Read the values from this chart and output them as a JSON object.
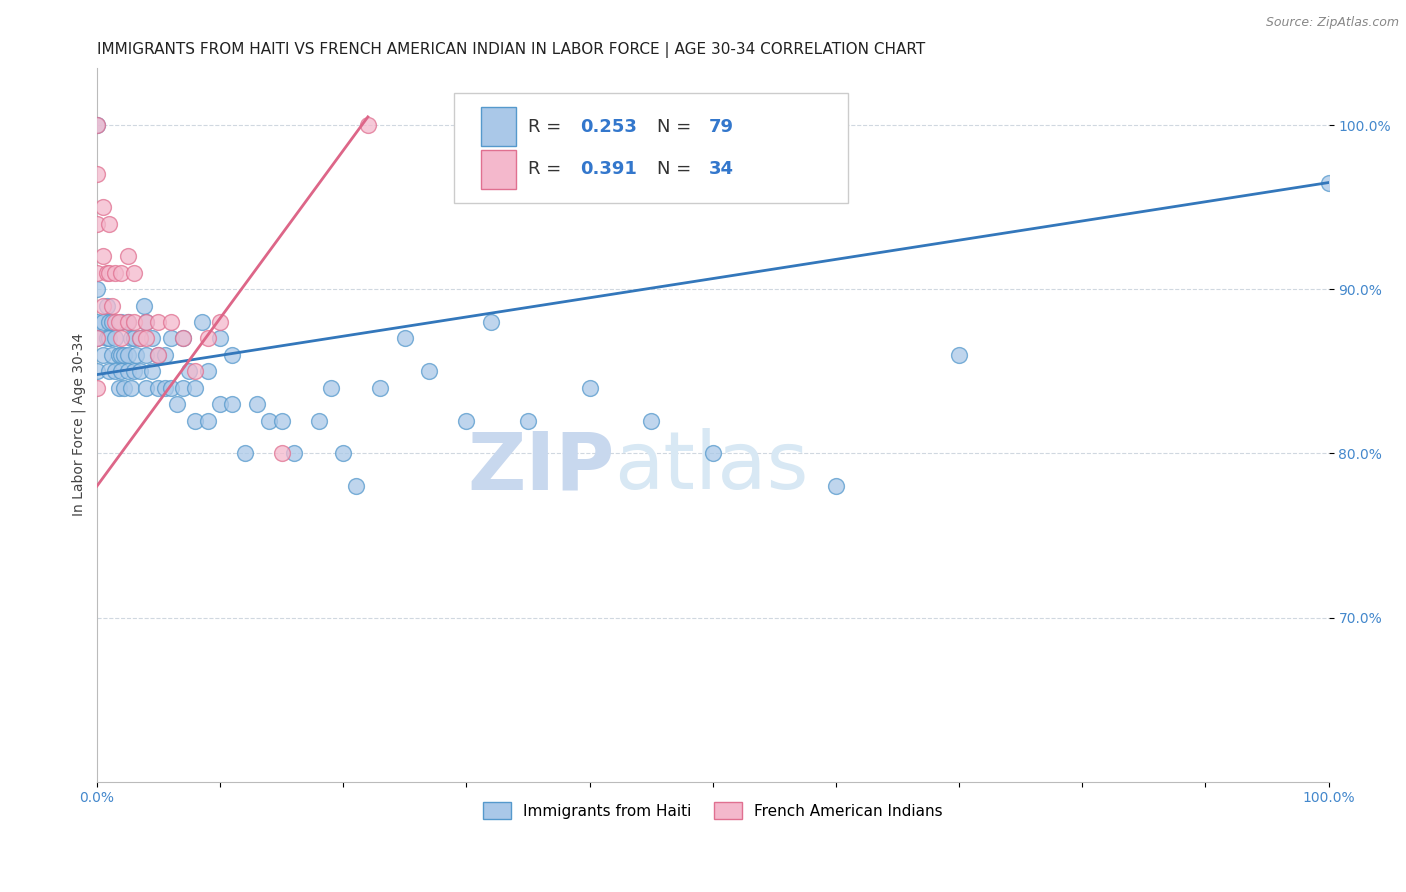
{
  "title": "IMMIGRANTS FROM HAITI VS FRENCH AMERICAN INDIAN IN LABOR FORCE | AGE 30-34 CORRELATION CHART",
  "source": "Source: ZipAtlas.com",
  "ylabel": "In Labor Force | Age 30-34",
  "xlim": [
    0.0,
    1.0
  ],
  "ylim": [
    0.6,
    1.035
  ],
  "yticks": [
    0.7,
    0.8,
    0.9,
    1.0
  ],
  "ytick_labels": [
    "70.0%",
    "80.0%",
    "90.0%",
    "100.0%"
  ],
  "haiti_color": "#aac8e8",
  "haiti_edge_color": "#5599cc",
  "french_color": "#f4b8cc",
  "french_edge_color": "#e07090",
  "haiti_R": "0.253",
  "haiti_N": "79",
  "french_R": "0.391",
  "french_N": "34",
  "haiti_line_color": "#3377bb",
  "french_line_color": "#dd6688",
  "haiti_line_x": [
    0.0,
    1.0
  ],
  "haiti_line_y": [
    0.848,
    0.965
  ],
  "french_line_x": [
    0.0,
    0.22
  ],
  "french_line_y": [
    0.78,
    1.005
  ],
  "haiti_points_x": [
    0.0,
    0.0,
    0.0,
    0.0,
    0.0,
    0.005,
    0.005,
    0.008,
    0.008,
    0.01,
    0.01,
    0.01,
    0.012,
    0.012,
    0.015,
    0.015,
    0.018,
    0.018,
    0.02,
    0.02,
    0.02,
    0.022,
    0.022,
    0.025,
    0.025,
    0.025,
    0.028,
    0.028,
    0.03,
    0.03,
    0.032,
    0.035,
    0.035,
    0.038,
    0.04,
    0.04,
    0.04,
    0.045,
    0.045,
    0.05,
    0.05,
    0.055,
    0.055,
    0.06,
    0.06,
    0.065,
    0.07,
    0.07,
    0.075,
    0.08,
    0.08,
    0.085,
    0.09,
    0.09,
    0.1,
    0.1,
    0.11,
    0.11,
    0.12,
    0.13,
    0.14,
    0.15,
    0.16,
    0.18,
    0.19,
    0.2,
    0.21,
    0.23,
    0.25,
    0.27,
    0.3,
    0.32,
    0.35,
    0.4,
    0.45,
    0.5,
    0.6,
    0.7,
    1.0
  ],
  "haiti_points_y": [
    0.85,
    0.87,
    0.88,
    0.9,
    1.0,
    0.86,
    0.88,
    0.87,
    0.89,
    0.85,
    0.87,
    0.88,
    0.86,
    0.88,
    0.85,
    0.87,
    0.84,
    0.86,
    0.85,
    0.86,
    0.88,
    0.84,
    0.86,
    0.85,
    0.86,
    0.88,
    0.84,
    0.87,
    0.85,
    0.87,
    0.86,
    0.85,
    0.87,
    0.89,
    0.84,
    0.86,
    0.88,
    0.85,
    0.87,
    0.84,
    0.86,
    0.84,
    0.86,
    0.84,
    0.87,
    0.83,
    0.84,
    0.87,
    0.85,
    0.82,
    0.84,
    0.88,
    0.82,
    0.85,
    0.83,
    0.87,
    0.83,
    0.86,
    0.8,
    0.83,
    0.82,
    0.82,
    0.8,
    0.82,
    0.84,
    0.8,
    0.78,
    0.84,
    0.87,
    0.85,
    0.82,
    0.88,
    0.82,
    0.84,
    0.82,
    0.8,
    0.78,
    0.86,
    0.965
  ],
  "french_points_x": [
    0.0,
    0.0,
    0.0,
    0.0,
    0.0,
    0.0,
    0.005,
    0.005,
    0.005,
    0.008,
    0.01,
    0.01,
    0.012,
    0.015,
    0.015,
    0.018,
    0.02,
    0.02,
    0.025,
    0.025,
    0.03,
    0.03,
    0.035,
    0.04,
    0.04,
    0.05,
    0.05,
    0.06,
    0.07,
    0.08,
    0.09,
    0.1,
    0.15,
    0.22
  ],
  "french_points_y": [
    1.0,
    0.97,
    0.94,
    0.91,
    0.87,
    0.84,
    0.95,
    0.92,
    0.89,
    0.91,
    0.94,
    0.91,
    0.89,
    0.91,
    0.88,
    0.88,
    0.91,
    0.87,
    0.92,
    0.88,
    0.91,
    0.88,
    0.87,
    0.87,
    0.88,
    0.86,
    0.88,
    0.88,
    0.87,
    0.85,
    0.87,
    0.88,
    0.8,
    1.0
  ],
  "watermark_zip": "ZIP",
  "watermark_atlas": "atlas",
  "background_color": "#ffffff",
  "grid_color": "#d0d8e0",
  "title_fontsize": 11,
  "axis_label_fontsize": 10,
  "tick_fontsize": 10,
  "legend_fontsize": 12
}
